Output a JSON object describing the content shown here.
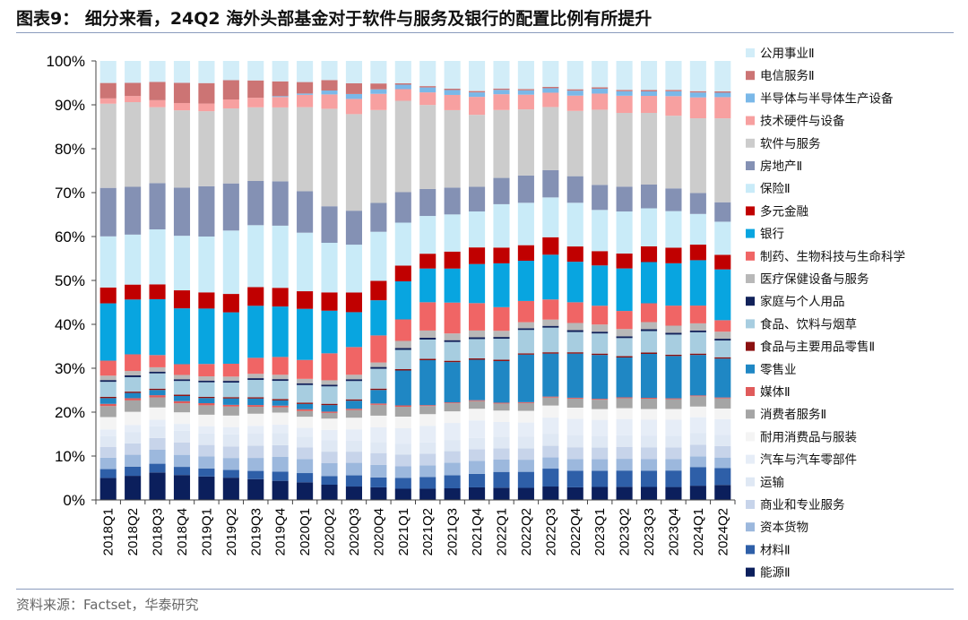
{
  "header": {
    "title": "图表9：  细分来看，24Q2 海外头部基金对于软件与服务及银行的配置比例有所提升"
  },
  "footer": {
    "source": "资料来源：Factset，华泰研究"
  },
  "chart_data": {
    "type": "bar",
    "stacked": true,
    "categories": [
      "2018Q1",
      "2018Q2",
      "2018Q3",
      "2018Q4",
      "2019Q1",
      "2019Q2",
      "2019Q3",
      "2019Q4",
      "2020Q1",
      "2020Q2",
      "2020Q3",
      "2020Q4",
      "2021Q1",
      "2021Q2",
      "2021Q3",
      "2021Q4",
      "2022Q1",
      "2022Q2",
      "2022Q3",
      "2022Q4",
      "2023Q1",
      "2023Q2",
      "2023Q3",
      "2023Q4",
      "2024Q1",
      "2024Q2"
    ],
    "ylim": [
      0,
      100
    ],
    "yticks": [
      "0%",
      "10%",
      "20%",
      "30%",
      "40%",
      "50%",
      "60%",
      "70%",
      "80%",
      "90%",
      "100%"
    ],
    "legend_position": "right",
    "series": [
      {
        "name": "能源Ⅱ",
        "color": "#0b1f5c",
        "values": [
          5.0,
          5.5,
          6.3,
          5.8,
          5.5,
          5.2,
          4.8,
          4.4,
          4.0,
          3.5,
          3.0,
          2.8,
          2.5,
          2.5,
          2.6,
          2.8,
          2.8,
          2.8,
          3.0,
          2.8,
          2.9,
          2.9,
          2.9,
          2.9,
          3.2,
          3.4
        ]
      },
      {
        "name": "材料Ⅱ",
        "color": "#2e5fa8",
        "values": [
          2.0,
          2.1,
          2.0,
          1.9,
          1.9,
          1.8,
          1.9,
          2.1,
          2.1,
          2.0,
          2.5,
          2.2,
          2.4,
          2.6,
          2.9,
          3.0,
          3.6,
          3.7,
          4.0,
          3.7,
          3.6,
          3.6,
          3.6,
          3.7,
          4.2,
          3.8
        ]
      },
      {
        "name": "资本货物",
        "color": "#9cb8dd",
        "values": [
          2.6,
          2.7,
          3.2,
          2.8,
          2.8,
          2.8,
          3.0,
          3.4,
          3.2,
          3.0,
          2.8,
          2.8,
          2.6,
          2.6,
          2.8,
          2.9,
          2.8,
          2.8,
          2.5,
          2.6,
          2.6,
          2.6,
          2.6,
          2.6,
          2.4,
          2.4
        ]
      },
      {
        "name": "商业和专业服务",
        "color": "#c7d4ea",
        "values": [
          2.4,
          2.6,
          2.7,
          2.9,
          2.7,
          2.7,
          2.8,
          2.7,
          2.6,
          2.6,
          2.5,
          2.6,
          2.6,
          2.6,
          2.6,
          2.6,
          2.6,
          2.6,
          2.6,
          2.6,
          2.6,
          2.6,
          2.6,
          2.6,
          2.6,
          2.6
        ]
      },
      {
        "name": "运输",
        "color": "#dfe8f4",
        "values": [
          2.5,
          2.6,
          2.7,
          2.7,
          2.7,
          2.8,
          2.8,
          2.8,
          2.5,
          2.6,
          2.5,
          2.4,
          2.4,
          2.5,
          2.5,
          2.5,
          2.6,
          2.7,
          2.7,
          2.7,
          2.6,
          2.6,
          2.6,
          2.6,
          2.6,
          2.5
        ]
      },
      {
        "name": "汽车与汽车零部件",
        "color": "#e6edf7",
        "values": [
          1.5,
          1.6,
          1.5,
          1.6,
          1.7,
          1.7,
          1.8,
          1.9,
          2.0,
          2.4,
          2.5,
          3.3,
          3.5,
          3.7,
          3.8,
          3.9,
          3.4,
          3.3,
          3.6,
          3.6,
          3.6,
          3.6,
          3.6,
          3.6,
          3.6,
          3.6
        ]
      },
      {
        "name": "耐用消费品与服装",
        "color": "#f4f4f4",
        "values": [
          2.8,
          3.0,
          2.8,
          2.7,
          2.7,
          2.7,
          2.8,
          2.8,
          2.5,
          2.6,
          2.6,
          2.6,
          2.6,
          2.6,
          2.6,
          2.6,
          2.6,
          2.7,
          2.7,
          2.5,
          2.4,
          2.4,
          2.4,
          2.4,
          2.4,
          2.4
        ]
      },
      {
        "name": "消费者服务Ⅱ",
        "color": "#a5a5a5",
        "values": [
          2.5,
          2.6,
          2.3,
          2.1,
          2.2,
          2.1,
          1.6,
          1.2,
          1.3,
          1.3,
          1.7,
          2.4,
          2.2,
          1.8,
          1.8,
          1.7,
          1.6,
          1.8,
          1.8,
          2.0,
          2.1,
          2.2,
          2.3,
          2.2,
          2.3,
          2.3
        ]
      },
      {
        "name": "媒体Ⅱ",
        "color": "#e05b5b",
        "values": [
          0.5,
          0.5,
          0.5,
          0.5,
          0.5,
          0.4,
          0.4,
          0.4,
          0.4,
          0.3,
          0.3,
          0.3,
          0.3,
          0.2,
          0.2,
          0.2,
          0.2,
          0.2,
          0.2,
          0.2,
          0.2,
          0.2,
          0.2,
          0.2,
          0.2,
          0.2
        ]
      },
      {
        "name": "零售业",
        "color": "#1f87c4",
        "values": [
          1.3,
          1.2,
          1.2,
          1.2,
          1.2,
          1.5,
          1.5,
          1.2,
          1.2,
          1.5,
          1.8,
          3.0,
          7.8,
          10.0,
          9.0,
          9.0,
          9.5,
          11.0,
          9.6,
          9.8,
          9.8,
          8.8,
          9.8,
          9.5,
          9.1,
          8.8
        ]
      },
      {
        "name": "食品与主要用品零售Ⅱ",
        "color": "#8b1010",
        "values": [
          0.3,
          0.3,
          0.3,
          0.3,
          0.3,
          0.3,
          0.3,
          0.3,
          0.3,
          0.3,
          0.3,
          0.3,
          0.3,
          0.3,
          0.3,
          0.3,
          0.3,
          0.3,
          0.3,
          0.3,
          0.3,
          0.3,
          0.3,
          0.3,
          0.3,
          0.3
        ]
      },
      {
        "name": "食品、饮料与烟草",
        "color": "#a7cde0",
        "values": [
          3.4,
          3.3,
          3.5,
          3.2,
          3.4,
          3.4,
          4.0,
          4.2,
          4.0,
          4.0,
          4.1,
          4.4,
          4.3,
          4.3,
          4.2,
          4.3,
          4.8,
          5.4,
          5.5,
          4.5,
          4.5,
          4.0,
          4.8,
          4.5,
          4.8,
          3.8
        ]
      },
      {
        "name": "家庭与个人用品",
        "color": "#12225a",
        "values": [
          0.4,
          0.4,
          0.4,
          0.4,
          0.4,
          0.4,
          0.4,
          0.4,
          0.4,
          0.4,
          0.4,
          0.4,
          0.4,
          0.4,
          0.4,
          0.4,
          0.4,
          0.4,
          0.4,
          0.4,
          0.4,
          0.4,
          0.4,
          0.4,
          0.4,
          0.4
        ]
      },
      {
        "name": "医疗保健设备与服务",
        "color": "#b8b8b8",
        "values": [
          1.0,
          1.0,
          1.0,
          1.0,
          1.0,
          1.0,
          1.0,
          1.0,
          1.0,
          1.0,
          1.0,
          1.0,
          1.6,
          1.6,
          1.5,
          1.5,
          1.4,
          1.4,
          1.4,
          1.6,
          1.6,
          1.6,
          1.6,
          1.6,
          1.6,
          1.6
        ]
      },
      {
        "name": "制药、生物科技与生命科学",
        "color": "#f06565",
        "values": [
          3.4,
          3.8,
          2.8,
          2.5,
          2.9,
          3.0,
          3.7,
          4.1,
          4.3,
          6.2,
          6.2,
          6.0,
          4.8,
          6.3,
          6.9,
          6.1,
          5.4,
          4.9,
          4.5,
          4.6,
          4.2,
          4.0,
          4.2,
          4.5,
          4.0,
          2.6
        ]
      },
      {
        "name": "银行",
        "color": "#08a5e0",
        "values": [
          13.0,
          12.5,
          12.8,
          13.0,
          13.0,
          12.0,
          12.0,
          11.6,
          11.6,
          9.8,
          7.8,
          7.8,
          8.5,
          7.5,
          7.6,
          8.7,
          10.0,
          9.3,
          10.0,
          9.0,
          9.0,
          9.4,
          9.2,
          9.5,
          10.2,
          11.5
        ]
      },
      {
        "name": "多元金融",
        "color": "#c00000",
        "values": [
          3.6,
          3.4,
          3.4,
          4.2,
          3.8,
          4.3,
          4.3,
          4.3,
          4.0,
          4.2,
          4.4,
          4.3,
          3.5,
          3.3,
          3.8,
          3.7,
          3.6,
          3.6,
          3.9,
          3.4,
          3.2,
          3.3,
          3.5,
          3.5,
          3.5,
          3.3
        ]
      },
      {
        "name": "保险Ⅱ",
        "color": "#c9ebf8",
        "values": [
          11.6,
          11.4,
          12.6,
          12.7,
          13.1,
          14.8,
          14.3,
          14.3,
          13.3,
          11.4,
          10.7,
          10.9,
          9.6,
          8.4,
          8.3,
          8.0,
          9.9,
          9.8,
          8.9,
          9.7,
          9.2,
          9.3,
          8.5,
          8.2,
          6.9,
          7.5
        ]
      },
      {
        "name": "房地产Ⅱ",
        "color": "#8491b4",
        "values": [
          11.0,
          10.9,
          10.6,
          11.2,
          11.8,
          11.0,
          10.2,
          10.2,
          9.4,
          8.4,
          7.6,
          6.4,
          6.8,
          6.0,
          6.0,
          5.5,
          6.0,
          6.3,
          6.1,
          5.9,
          5.6,
          5.5,
          5.3,
          5.1,
          4.7,
          4.4
        ]
      },
      {
        "name": "软件与服务",
        "color": "#cccccc",
        "values": [
          19.1,
          19.3,
          17.4,
          18.0,
          17.6,
          17.5,
          17.0,
          17.0,
          19.1,
          22.4,
          21.6,
          20.6,
          20.4,
          18.7,
          17.3,
          16.0,
          15.5,
          15.3,
          14.1,
          14.5,
          16.8,
          16.3,
          16.0,
          16.3,
          16.8,
          19.0
        ]
      },
      {
        "name": "技术硬件与设备",
        "color": "#f7a0a0",
        "values": [
          1.2,
          1.4,
          1.6,
          1.7,
          1.8,
          2.1,
          2.2,
          2.4,
          2.8,
          3.3,
          3.4,
          3.6,
          2.6,
          2.8,
          3.4,
          4.0,
          3.6,
          3.4,
          3.2,
          3.4,
          3.6,
          3.8,
          3.8,
          4.4,
          4.7,
          4.8
        ]
      },
      {
        "name": "半导体与半导体生产设备",
        "color": "#7ab8e8",
        "values": [
          0.0,
          0.0,
          0.0,
          0.0,
          0.0,
          0.0,
          0.0,
          0.2,
          0.3,
          0.9,
          1.1,
          1.0,
          1.0,
          1.1,
          1.1,
          1.0,
          1.0,
          1.0,
          1.0,
          1.1,
          1.1,
          1.0,
          1.0,
          1.1,
          1.1,
          1.0
        ]
      },
      {
        "name": "电信服务Ⅱ",
        "color": "#cc7474",
        "values": [
          3.5,
          3.0,
          4.2,
          4.7,
          4.8,
          4.5,
          4.0,
          3.4,
          2.6,
          2.4,
          2.4,
          1.3,
          0.3,
          0.3,
          0.3,
          0.3,
          0.3,
          0.3,
          0.3,
          0.3,
          0.3,
          0.3,
          0.3,
          0.3,
          0.3,
          0.3
        ]
      },
      {
        "name": "公用事业Ⅱ",
        "color": "#d2edf8",
        "values": [
          5.0,
          5.0,
          4.8,
          5.1,
          5.2,
          4.5,
          4.5,
          4.7,
          4.8,
          4.4,
          5.0,
          5.0,
          5.0,
          5.6,
          6.2,
          6.7,
          6.3,
          6.5,
          5.8,
          6.3,
          5.9,
          6.4,
          6.5,
          6.5,
          6.8,
          6.9
        ]
      }
    ]
  }
}
